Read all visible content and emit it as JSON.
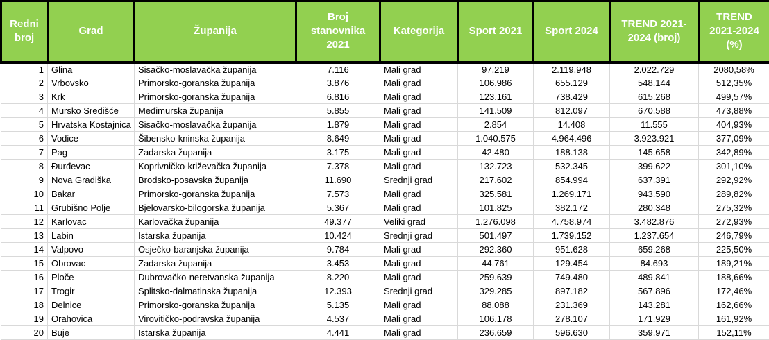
{
  "colors": {
    "header_bg": "#92D050",
    "header_text": "#FFFFFF",
    "header_border": "#000000",
    "gridline": "#D9D9D9",
    "cell_text": "#000000"
  },
  "table": {
    "columns": [
      {
        "id": "redni-broj",
        "label": "Redni broj",
        "align": "right"
      },
      {
        "id": "grad",
        "label": "Grad",
        "align": "left"
      },
      {
        "id": "zupanija",
        "label": "Županija",
        "align": "left"
      },
      {
        "id": "broj-stanovnika-2021",
        "label": "Broj stanovnika 2021",
        "align": "center"
      },
      {
        "id": "kategorija",
        "label": "Kategorija",
        "align": "left"
      },
      {
        "id": "sport-2021",
        "label": "Sport 2021",
        "align": "center"
      },
      {
        "id": "sport-2024",
        "label": "Sport 2024",
        "align": "center"
      },
      {
        "id": "trend-2021-2024-broj",
        "label": "TREND 2021-2024 (broj)",
        "align": "center"
      },
      {
        "id": "trend-2021-2024-pct",
        "label": "TREND 2021-2024 (%)",
        "align": "center"
      }
    ],
    "rows": [
      [
        "1",
        "Glina",
        "Sisačko-moslavačka županija",
        "7.116",
        "Mali grad",
        "97.219",
        "2.119.948",
        "2.022.729",
        "2080,58%"
      ],
      [
        "2",
        "Vrbovsko",
        "Primorsko-goranska županija",
        "3.876",
        "Mali grad",
        "106.986",
        "655.129",
        "548.144",
        "512,35%"
      ],
      [
        "3",
        "Krk",
        "Primorsko-goranska županija",
        "6.816",
        "Mali grad",
        "123.161",
        "738.429",
        "615.268",
        "499,57%"
      ],
      [
        "4",
        "Mursko Središće",
        "Međimurska županija",
        "5.855",
        "Mali grad",
        "141.509",
        "812.097",
        "670.588",
        "473,88%"
      ],
      [
        "5",
        "Hrvatska Kostajnica",
        "Sisačko-moslavačka županija",
        "1.879",
        "Mali grad",
        "2.854",
        "14.408",
        "11.555",
        "404,93%"
      ],
      [
        "6",
        "Vodice",
        "Šibensko-kninska županija",
        "8.649",
        "Mali grad",
        "1.040.575",
        "4.964.496",
        "3.923.921",
        "377,09%"
      ],
      [
        "7",
        "Pag",
        "Zadarska županija",
        "3.175",
        "Mali grad",
        "42.480",
        "188.138",
        "145.658",
        "342,89%"
      ],
      [
        "8",
        "Đurđevac",
        "Koprivničko-križevačka županija",
        "7.378",
        "Mali grad",
        "132.723",
        "532.345",
        "399.622",
        "301,10%"
      ],
      [
        "9",
        "Nova Gradiška",
        "Brodsko-posavska županija",
        "11.690",
        "Srednji grad",
        "217.602",
        "854.994",
        "637.391",
        "292,92%"
      ],
      [
        "10",
        "Bakar",
        "Primorsko-goranska županija",
        "7.573",
        "Mali grad",
        "325.581",
        "1.269.171",
        "943.590",
        "289,82%"
      ],
      [
        "11",
        "Grubišno Polje",
        "Bjelovarsko-bilogorska županija",
        "5.367",
        "Mali grad",
        "101.825",
        "382.172",
        "280.348",
        "275,32%"
      ],
      [
        "12",
        "Karlovac",
        "Karlovačka županija",
        "49.377",
        "Veliki grad",
        "1.276.098",
        "4.758.974",
        "3.482.876",
        "272,93%"
      ],
      [
        "13",
        "Labin",
        "Istarska županija",
        "10.424",
        "Srednji grad",
        "501.497",
        "1.739.152",
        "1.237.654",
        "246,79%"
      ],
      [
        "14",
        "Valpovo",
        "Osječko-baranjska županija",
        "9.784",
        "Mali grad",
        "292.360",
        "951.628",
        "659.268",
        "225,50%"
      ],
      [
        "15",
        "Obrovac",
        "Zadarska županija",
        "3.453",
        "Mali grad",
        "44.761",
        "129.454",
        "84.693",
        "189,21%"
      ],
      [
        "16",
        "Ploče",
        "Dubrovačko-neretvanska županija",
        "8.220",
        "Mali grad",
        "259.639",
        "749.480",
        "489.841",
        "188,66%"
      ],
      [
        "17",
        "Trogir",
        "Splitsko-dalmatinska županija",
        "12.393",
        "Srednji grad",
        "329.285",
        "897.182",
        "567.896",
        "172,46%"
      ],
      [
        "18",
        "Delnice",
        "Primorsko-goranska županija",
        "5.135",
        "Mali grad",
        "88.088",
        "231.369",
        "143.281",
        "162,66%"
      ],
      [
        "19",
        "Orahovica",
        "Virovitičko-podravska županija",
        "4.537",
        "Mali grad",
        "106.178",
        "278.107",
        "171.929",
        "161,92%"
      ],
      [
        "20",
        "Buje",
        "Istarska županija",
        "4.441",
        "Mali grad",
        "236.659",
        "596.630",
        "359.971",
        "152,11%"
      ]
    ]
  }
}
